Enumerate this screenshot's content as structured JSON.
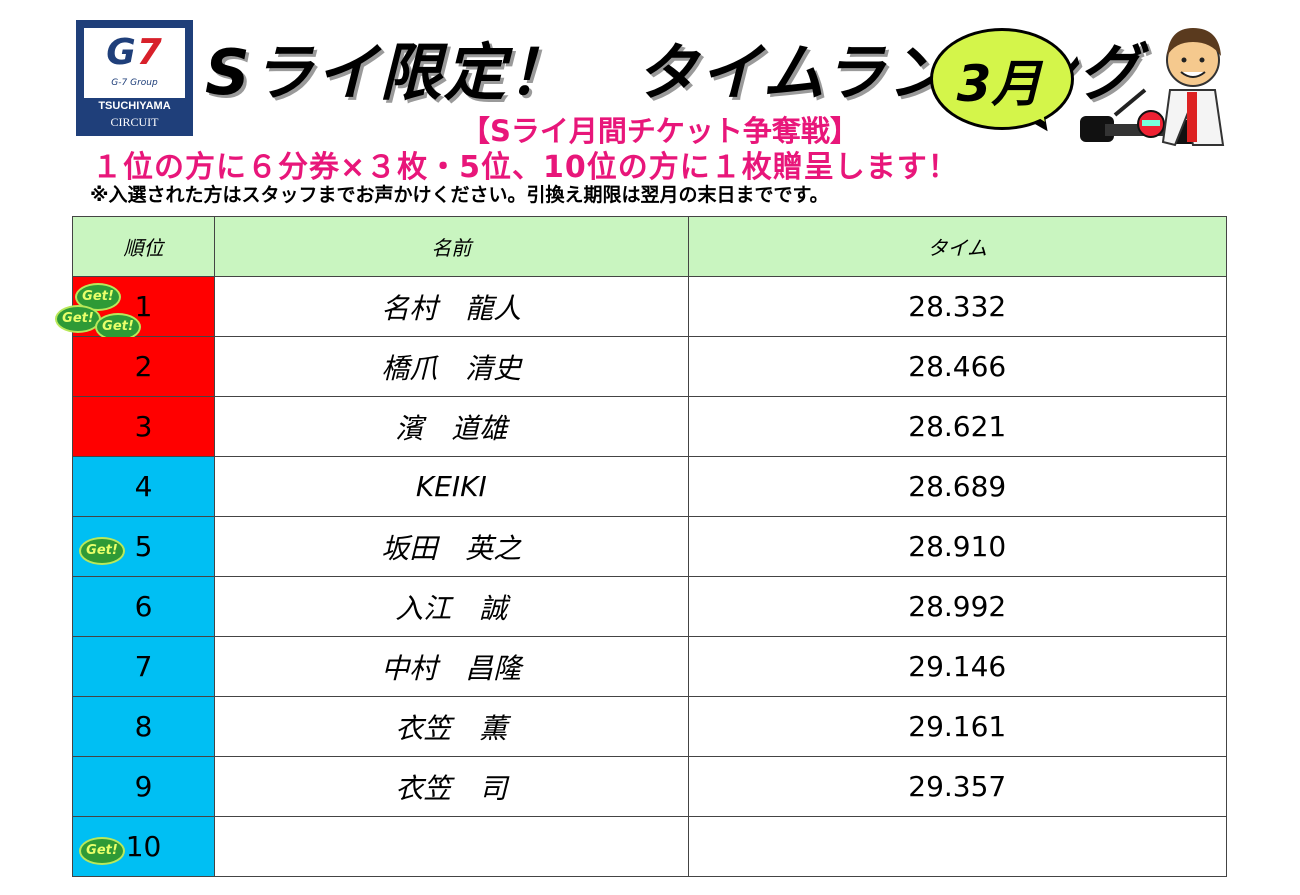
{
  "logo": {
    "mark_g": "G",
    "mark_7": "7",
    "group": "G-7 Group",
    "name": "TSUCHIYAMA",
    "sub": "CIRCUIT"
  },
  "title": "Sライ限定！　タイムランキング",
  "month": "3月",
  "campaign": "【Sライ月間チケット争奪戦】",
  "prize": "１位の方に６分券×３枚・5位、10位の方に１枚贈呈します！",
  "note": "※入選された方はスタッフまでお声かけください。引換え期限は翌月の末日までです。",
  "badge_text": "Get!",
  "headers": {
    "rank": "順位",
    "name": "名前",
    "time": "タイム"
  },
  "colors": {
    "top3": "#ff0000",
    "rest": "#00bff3",
    "header": "#c9f5c0",
    "accent": "#e8167a",
    "bubble": "#d4f54a"
  },
  "rows": [
    {
      "rank": "1",
      "name": "名村　龍人",
      "time": "28.332",
      "badges": 3
    },
    {
      "rank": "2",
      "name": "橋爪　清史",
      "time": "28.466",
      "badges": 0
    },
    {
      "rank": "3",
      "name": "濱　道雄",
      "time": "28.621",
      "badges": 0
    },
    {
      "rank": "4",
      "name": "KEIKI",
      "time": "28.689",
      "badges": 0
    },
    {
      "rank": "5",
      "name": "坂田　英之",
      "time": "28.910",
      "badges": 1
    },
    {
      "rank": "6",
      "name": "入江　誠",
      "time": "28.992",
      "badges": 0
    },
    {
      "rank": "7",
      "name": "中村　昌隆",
      "time": "29.146",
      "badges": 0
    },
    {
      "rank": "8",
      "name": "衣笠　薫",
      "time": "29.161",
      "badges": 0
    },
    {
      "rank": "9",
      "name": "衣笠　司",
      "time": "29.357",
      "badges": 0
    },
    {
      "rank": "10",
      "name": "",
      "time": "",
      "badges": 1
    }
  ]
}
